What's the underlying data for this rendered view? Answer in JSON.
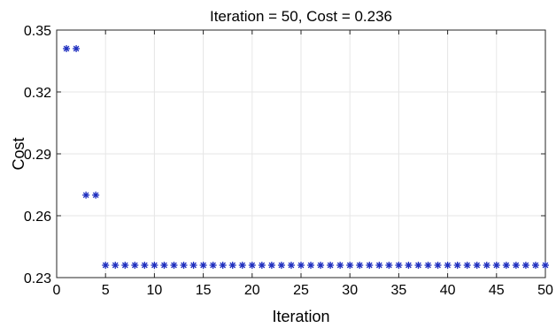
{
  "chart_data": {
    "type": "scatter",
    "title": "Iteration = 50, Cost = 0.236",
    "xlabel": "Iteration",
    "ylabel": "Cost",
    "xlim": [
      0,
      50
    ],
    "ylim": [
      0.23,
      0.35
    ],
    "xticks": [
      0,
      5,
      10,
      15,
      20,
      25,
      30,
      35,
      40,
      45,
      50
    ],
    "yticks": [
      0.23,
      0.26,
      0.29,
      0.32,
      0.35
    ],
    "ytick_labels": [
      "0.23",
      "0.26",
      "0.29",
      "0.32",
      "0.35"
    ],
    "grid": true,
    "marker": "asterisk",
    "marker_color": "#1f2fbf",
    "series": [
      {
        "x": [
          1,
          2,
          3,
          4,
          5,
          6,
          7,
          8,
          9,
          10,
          11,
          12,
          13,
          14,
          15,
          16,
          17,
          18,
          19,
          20,
          21,
          22,
          23,
          24,
          25,
          26,
          27,
          28,
          29,
          30,
          31,
          32,
          33,
          34,
          35,
          36,
          37,
          38,
          39,
          40,
          41,
          42,
          43,
          44,
          45,
          46,
          47,
          48,
          49,
          50
        ],
        "y": [
          0.341,
          0.341,
          0.27,
          0.27,
          0.236,
          0.236,
          0.236,
          0.236,
          0.236,
          0.236,
          0.236,
          0.236,
          0.236,
          0.236,
          0.236,
          0.236,
          0.236,
          0.236,
          0.236,
          0.236,
          0.236,
          0.236,
          0.236,
          0.236,
          0.236,
          0.236,
          0.236,
          0.236,
          0.236,
          0.236,
          0.236,
          0.236,
          0.236,
          0.236,
          0.236,
          0.236,
          0.236,
          0.236,
          0.236,
          0.236,
          0.236,
          0.236,
          0.236,
          0.236,
          0.236,
          0.236,
          0.236,
          0.236,
          0.236,
          0.236
        ]
      }
    ]
  }
}
